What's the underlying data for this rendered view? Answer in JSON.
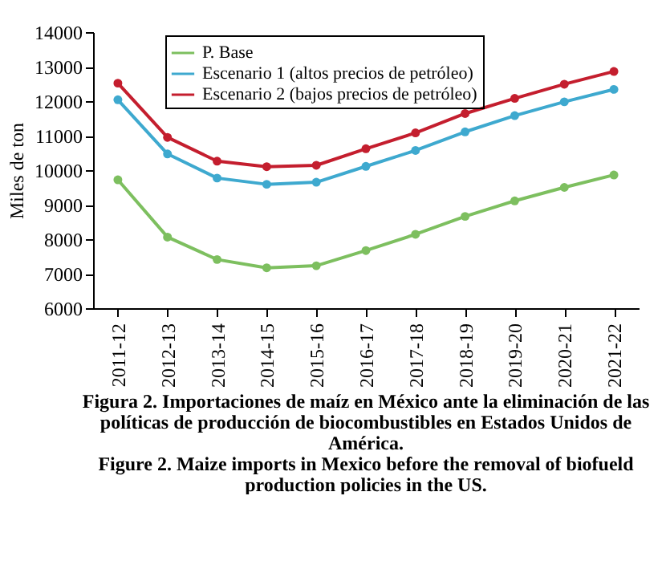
{
  "chart_data": {
    "type": "line",
    "title": "Figura 2. Importaciones de maíz en México ante la eliminación de las políticas de producción de biocombustibles en Estados Unidos de América.",
    "subtitle": "Figure 2. Maize imports in Mexico before the removal of biofueld production policies in the US.",
    "ylabel": "Miles de ton",
    "categories": [
      "2011-12",
      "2012-13",
      "2013-14",
      "2014-15",
      "2015-16",
      "2016-17",
      "2017-18",
      "2018-19",
      "2019-20",
      "2020-21",
      "2021-22"
    ],
    "series": [
      {
        "name": "P. Base",
        "color": "#7dbf5f",
        "values": [
          9720,
          8060,
          7410,
          7170,
          7230,
          7670,
          8140,
          8660,
          9110,
          9500,
          9860
        ]
      },
      {
        "name": "Escenario 1 (altos precios de petróleo)",
        "color": "#3ea9cf",
        "values": [
          12040,
          10470,
          9770,
          9590,
          9650,
          10110,
          10570,
          11110,
          11580,
          11980,
          12340
        ]
      },
      {
        "name": "Escenario 2 (bajos precios de petróleo)",
        "color": "#c41e2e",
        "values": [
          12520,
          10950,
          10260,
          10100,
          10140,
          10620,
          11080,
          11640,
          12080,
          12490,
          12860
        ]
      }
    ],
    "ylim": [
      6000,
      14000
    ],
    "yticks": [
      6000,
      7000,
      8000,
      9000,
      10000,
      11000,
      12000,
      13000,
      14000
    ],
    "grid": false,
    "legend": "top left",
    "marker": "circle",
    "line_style": "solid"
  }
}
